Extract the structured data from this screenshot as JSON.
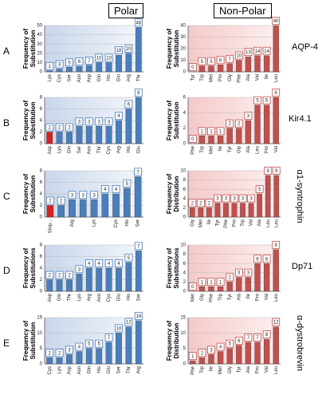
{
  "headers": {
    "polar": "Polar",
    "nonpolar": "Non-Polar"
  },
  "rows": [
    {
      "letter": "A",
      "protein": "AQP-4",
      "rotated": false
    },
    {
      "letter": "B",
      "protein": "Kir4.1",
      "rotated": false
    },
    {
      "letter": "C",
      "protein": "α1-syntrophin",
      "rotated": true
    },
    {
      "letter": "D",
      "protein": "Dp71",
      "rotated": false
    },
    {
      "letter": "E",
      "protein": "α-dystrobrevin",
      "rotated": true
    }
  ],
  "chart_data": [
    {
      "type": "bar",
      "ylabel": "Frequency of Substitution",
      "color": "#4a7ebb",
      "categories": [
        "Lys",
        "Cys",
        "Ser",
        "Asn",
        "Asp",
        "Gln",
        "His",
        "Glu",
        "Arg",
        "Thr"
      ],
      "values": [
        1,
        3,
        5,
        6,
        7,
        10,
        10,
        18,
        20,
        48
      ],
      "ylim": [
        0,
        50
      ],
      "yticks": [
        0,
        10,
        20,
        30,
        40,
        50
      ],
      "grid": true
    },
    {
      "type": "bar",
      "ylabel": "Frequency of Substitution",
      "color": "#c0504d",
      "categories": [
        "Tyr",
        "Trp",
        "Met",
        "Pro",
        "Gly",
        "Phe",
        "Ala",
        "Val",
        "Ile",
        "Leu"
      ],
      "values": [
        0,
        5,
        5,
        6,
        7,
        10,
        13,
        14,
        14,
        40
      ],
      "ylim": [
        0,
        40
      ],
      "yticks": [
        0,
        10,
        20,
        30,
        40
      ],
      "grid": true
    },
    {
      "type": "bar",
      "ylabel": "Frequency of Substitution",
      "color": "#4a7ebb",
      "bar_colors": [
        "#d62020",
        null,
        null,
        null,
        null,
        null,
        null,
        null,
        null,
        null
      ],
      "categories": [
        "Asp",
        "Lys",
        "Gln",
        "Ser",
        "Asn",
        "Thr",
        "Cys",
        "Arg",
        "His",
        "Glu"
      ],
      "values": [
        2,
        2,
        2,
        3,
        3,
        3,
        3,
        4,
        6,
        8
      ],
      "ylim": [
        0,
        8
      ],
      "yticks": [
        0,
        2,
        4,
        6,
        8
      ],
      "grid": true
    },
    {
      "type": "bar",
      "ylabel": "Frequency of Substitution",
      "color": "#c0504d",
      "categories": [
        "Phe",
        "Trp",
        "Met",
        "Ile",
        "Tyr",
        "Gly",
        "Ala",
        "Leu",
        "Pro",
        "Val"
      ],
      "values": [
        0,
        1,
        1,
        1,
        2,
        2,
        3,
        5,
        5,
        6
      ],
      "ylim": [
        0,
        6
      ],
      "yticks": [
        0,
        2,
        4,
        6
      ],
      "grid": true
    },
    {
      "type": "bar",
      "ylabel": "Frequency of Substitution",
      "color": "#4a7ebb",
      "bar_colors": [
        "#d62020",
        null,
        null,
        null,
        null,
        null,
        null,
        null,
        null
      ],
      "categories": [
        "Stop...",
        null,
        "Arg",
        null,
        "Lys",
        null,
        "Cys",
        "His",
        "Ser"
      ],
      "values": [
        2,
        2,
        3,
        3,
        3,
        4,
        4,
        5,
        7
      ],
      "ylim": [
        0,
        8
      ],
      "yticks": [
        0,
        2,
        4,
        6,
        8
      ],
      "grid": true
    },
    {
      "type": "bar",
      "ylabel": "Frequency of Distribution",
      "color": "#c0504d",
      "categories": [
        "Gly",
        "Met",
        "Ile",
        "Tyr",
        "Phe",
        "Pro",
        "Trp",
        "Val",
        "Ala",
        "Leu",
        "Leu"
      ],
      "values": [
        2,
        2,
        2,
        3,
        3,
        3,
        3,
        3,
        5,
        9,
        9
      ],
      "ylim": [
        0,
        10
      ],
      "yticks": [
        0,
        2,
        4,
        6,
        8,
        10
      ],
      "grid": true
    },
    {
      "type": "bar",
      "ylabel": "Frequency of Substitutions",
      "color": "#4a7ebb",
      "categories": [
        "Asp",
        "Gln",
        "Thr",
        "Lys",
        "Arg",
        "Asn",
        "Cys",
        "Glu",
        "His",
        "Ser"
      ],
      "values": [
        2,
        2,
        2,
        3,
        4,
        4,
        4,
        4,
        5,
        7
      ],
      "ylim": [
        0,
        8
      ],
      "yticks": [
        0,
        2,
        4,
        6,
        8
      ],
      "grid": true
    },
    {
      "type": "bar",
      "ylabel": "Frequency of Substitutions",
      "color": "#c0504d",
      "categories": [
        "Met",
        "Gly",
        "Phe",
        "Trp",
        "Tyr",
        "Ala",
        "Ile",
        "Pro",
        "Val",
        "Leu"
      ],
      "values": [
        0,
        1,
        1,
        1,
        2,
        3,
        3,
        6,
        6,
        9
      ],
      "ylim": [
        0,
        10
      ],
      "yticks": [
        0,
        2,
        4,
        6,
        8,
        10
      ],
      "grid": true
    },
    {
      "type": "bar",
      "ylabel": "Frequency of Substitution",
      "color": "#4a7ebb",
      "categories": [
        "Cys",
        "Lys",
        "Asp",
        "Asn",
        "Gln",
        "His",
        "Glu",
        "Ser",
        "Thr",
        "Arg"
      ],
      "values": [
        2,
        2,
        3,
        4,
        5,
        5,
        7,
        10,
        12,
        14
      ],
      "ylim": [
        0,
        15
      ],
      "yticks": [
        0,
        5,
        10,
        15
      ],
      "grid": true
    },
    {
      "type": "bar",
      "ylabel": "Frequency of Distribution",
      "color": "#c0504d",
      "categories": [
        "Phe",
        "Trp",
        "Ile",
        "Met",
        "Gly",
        "Tyr",
        "Ala",
        "Pro",
        "Val",
        "Leu"
      ],
      "values": [
        1,
        2,
        3,
        4,
        5,
        6,
        7,
        7,
        8,
        12
      ],
      "ylim": [
        0,
        15
      ],
      "yticks": [
        0,
        5,
        10,
        15
      ],
      "grid": true
    }
  ]
}
